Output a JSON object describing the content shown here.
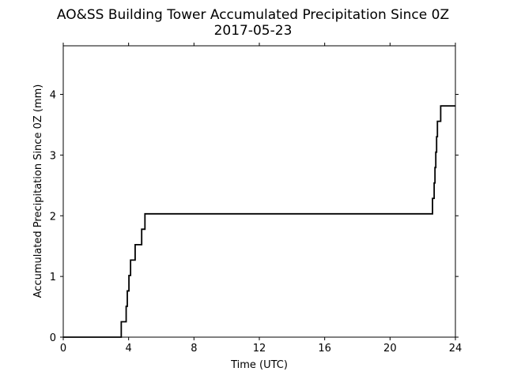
{
  "chart_data": {
    "type": "line",
    "title": "AO&SS Building Tower Accumulated Precipitation Since 0Z",
    "subtitle": "2017-05-23",
    "xlabel": "Time (UTC)",
    "ylabel": "Accumulated Precipitation Since 0Z (mm)",
    "xlim": [
      0,
      24
    ],
    "ylim": [
      0,
      4.8
    ],
    "xticks": [
      0,
      4,
      8,
      12,
      16,
      20,
      24
    ],
    "yticks": [
      0,
      1,
      2,
      3,
      4
    ],
    "grid": false,
    "line_color": "#000000",
    "step": "post",
    "series": [
      {
        "x": [
          0,
          3.55,
          3.85,
          3.92,
          4.02,
          4.12,
          4.4,
          4.8,
          5.0,
          22.6,
          22.7,
          22.75,
          22.8,
          22.85,
          22.9,
          22.95,
          23.0,
          23.1,
          24.0
        ],
        "y": [
          0,
          0.254,
          0.508,
          0.762,
          1.016,
          1.27,
          1.524,
          1.778,
          2.032,
          2.286,
          2.54,
          2.794,
          3.048,
          3.302,
          3.556,
          3.556,
          3.556,
          3.81,
          3.81
        ]
      }
    ]
  }
}
